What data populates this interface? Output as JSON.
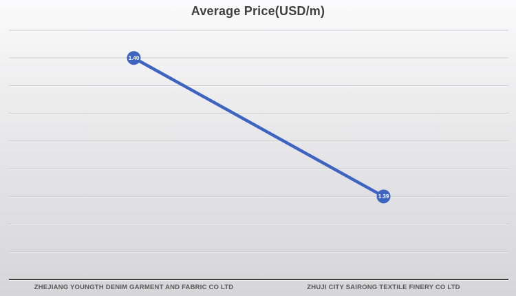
{
  "title": "Average Price(USD/m)",
  "chart_data": {
    "type": "line",
    "categories": [
      "ZHEJIANG YOUNGTH DENIM GARMENT AND FABRIC CO LTD",
      "ZHUJI CITY SAIRONG TEXTILE FINERY CO LTD"
    ],
    "series": [
      {
        "name": "Average Price(USD/m)",
        "values": [
          1.4,
          1.39
        ]
      }
    ],
    "data_labels": [
      "1.40",
      "1.39"
    ],
    "title": "Average Price(USD/m)",
    "xlabel": "",
    "ylabel": "",
    "ylim": [
      1.384,
      1.402
    ],
    "gridline_step": 0.002,
    "grid": true,
    "legend": "none",
    "colors": {
      "line": "#3e64c2",
      "marker_fill": "#3e64c2",
      "marker_label_text": "#ffffff",
      "title_text": "#3f3f3f",
      "category_label_text": "#595959",
      "gridline": "#c8c8ca",
      "gridline_highlight": "#fdfdfd",
      "axis_line": "#404040"
    }
  }
}
